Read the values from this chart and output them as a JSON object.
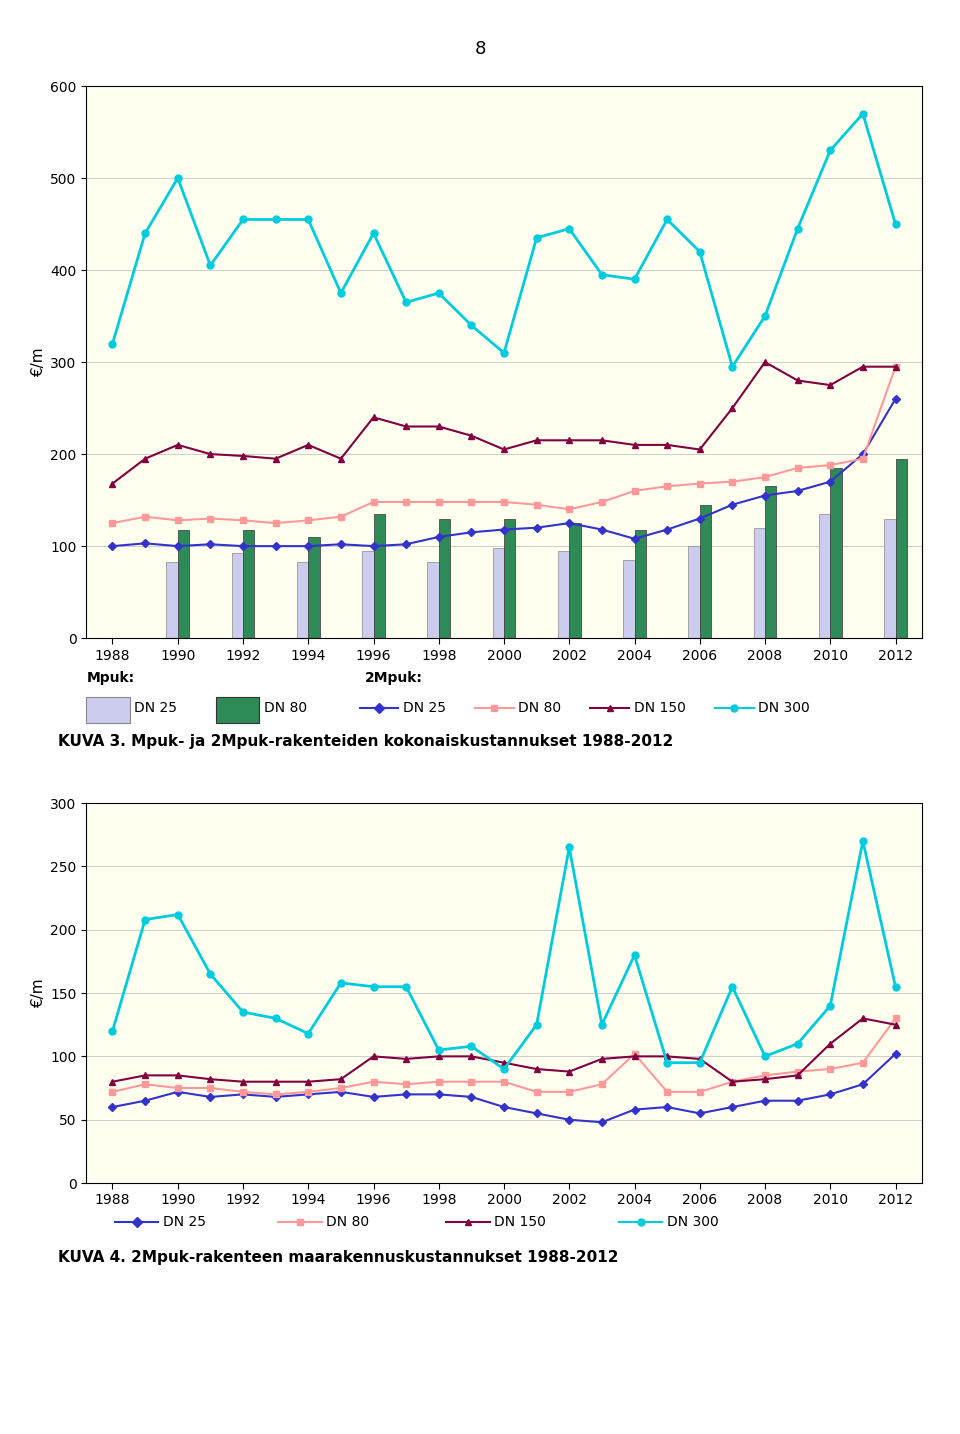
{
  "page_number": "8",
  "chart1": {
    "title": "KUVA 3. Mpuk- ja 2Mpuk-rakenteiden kokonaiskustannukset 1988-2012",
    "ylabel": "€/m",
    "ylim": [
      0,
      600
    ],
    "yticks": [
      0,
      100,
      200,
      300,
      400,
      500,
      600
    ],
    "years": [
      1988,
      1989,
      1990,
      1991,
      1992,
      1993,
      1994,
      1995,
      1996,
      1997,
      1998,
      1999,
      2000,
      2001,
      2002,
      2003,
      2004,
      2005,
      2006,
      2007,
      2008,
      2009,
      2010,
      2011,
      2012
    ],
    "mpuk_dn25_bars": [
      null,
      null,
      83,
      null,
      93,
      null,
      83,
      null,
      95,
      null,
      83,
      null,
      98,
      null,
      95,
      null,
      85,
      null,
      100,
      null,
      120,
      null,
      135,
      null,
      130
    ],
    "mpuk_dn80_bars": [
      null,
      null,
      118,
      null,
      118,
      null,
      110,
      null,
      135,
      null,
      130,
      null,
      130,
      null,
      125,
      null,
      118,
      null,
      145,
      null,
      165,
      null,
      185,
      null,
      195
    ],
    "line_2mpuk_dn25": [
      100,
      103,
      100,
      102,
      100,
      100,
      100,
      102,
      100,
      102,
      110,
      115,
      118,
      120,
      125,
      118,
      108,
      118,
      130,
      145,
      155,
      160,
      170,
      200,
      260
    ],
    "line_2mpuk_dn80": [
      125,
      132,
      128,
      130,
      128,
      125,
      128,
      132,
      148,
      148,
      148,
      148,
      148,
      145,
      140,
      148,
      160,
      165,
      168,
      170,
      175,
      185,
      188,
      195,
      295
    ],
    "line_2mpuk_dn150": [
      168,
      195,
      210,
      200,
      198,
      195,
      210,
      195,
      240,
      230,
      230,
      220,
      205,
      215,
      215,
      215,
      210,
      210,
      205,
      250,
      300,
      280,
      275,
      295,
      295
    ],
    "line_2mpuk_dn300": [
      320,
      440,
      500,
      405,
      455,
      455,
      455,
      375,
      440,
      365,
      375,
      340,
      310,
      435,
      445,
      395,
      390,
      455,
      420,
      295,
      350,
      445,
      530,
      570,
      450
    ],
    "bar_dn25_color": "#ccccee",
    "bar_dn80_color": "#2e8b57",
    "line_dn25_color": "#3333cc",
    "line_dn80_color": "#ff9999",
    "line_dn150_color": "#800040",
    "line_dn300_color": "#00ccdd",
    "background_color": "#fffff0"
  },
  "chart2": {
    "title": "KUVA 4. 2Mpuk-rakenteen maarakennuskustannukset 1988-2012",
    "ylabel": "€/m",
    "ylim": [
      0,
      300
    ],
    "yticks": [
      0,
      50,
      100,
      150,
      200,
      250,
      300
    ],
    "years": [
      1988,
      1989,
      1990,
      1991,
      1992,
      1993,
      1994,
      1995,
      1996,
      1997,
      1998,
      1999,
      2000,
      2001,
      2002,
      2003,
      2004,
      2005,
      2006,
      2007,
      2008,
      2009,
      2010,
      2011,
      2012
    ],
    "line_dn25": [
      60,
      65,
      72,
      68,
      70,
      68,
      70,
      72,
      68,
      70,
      70,
      68,
      60,
      55,
      50,
      48,
      58,
      60,
      55,
      60,
      65,
      65,
      70,
      78,
      102
    ],
    "line_dn80": [
      72,
      78,
      75,
      75,
      72,
      70,
      72,
      75,
      80,
      78,
      80,
      80,
      80,
      72,
      72,
      78,
      102,
      72,
      72,
      80,
      85,
      88,
      90,
      95,
      130
    ],
    "line_dn150": [
      80,
      85,
      85,
      82,
      80,
      80,
      80,
      82,
      100,
      98,
      100,
      100,
      95,
      90,
      88,
      98,
      100,
      100,
      98,
      80,
      82,
      85,
      110,
      130,
      125
    ],
    "line_dn300": [
      120,
      208,
      212,
      165,
      135,
      130,
      118,
      158,
      155,
      155,
      105,
      108,
      90,
      125,
      265,
      125,
      180,
      95,
      95,
      155,
      100,
      110,
      140,
      270,
      155
    ],
    "line_dn25_color": "#3333cc",
    "line_dn80_color": "#ff9999",
    "line_dn150_color": "#800040",
    "line_dn300_color": "#00ccdd",
    "background_color": "#fffff0"
  }
}
